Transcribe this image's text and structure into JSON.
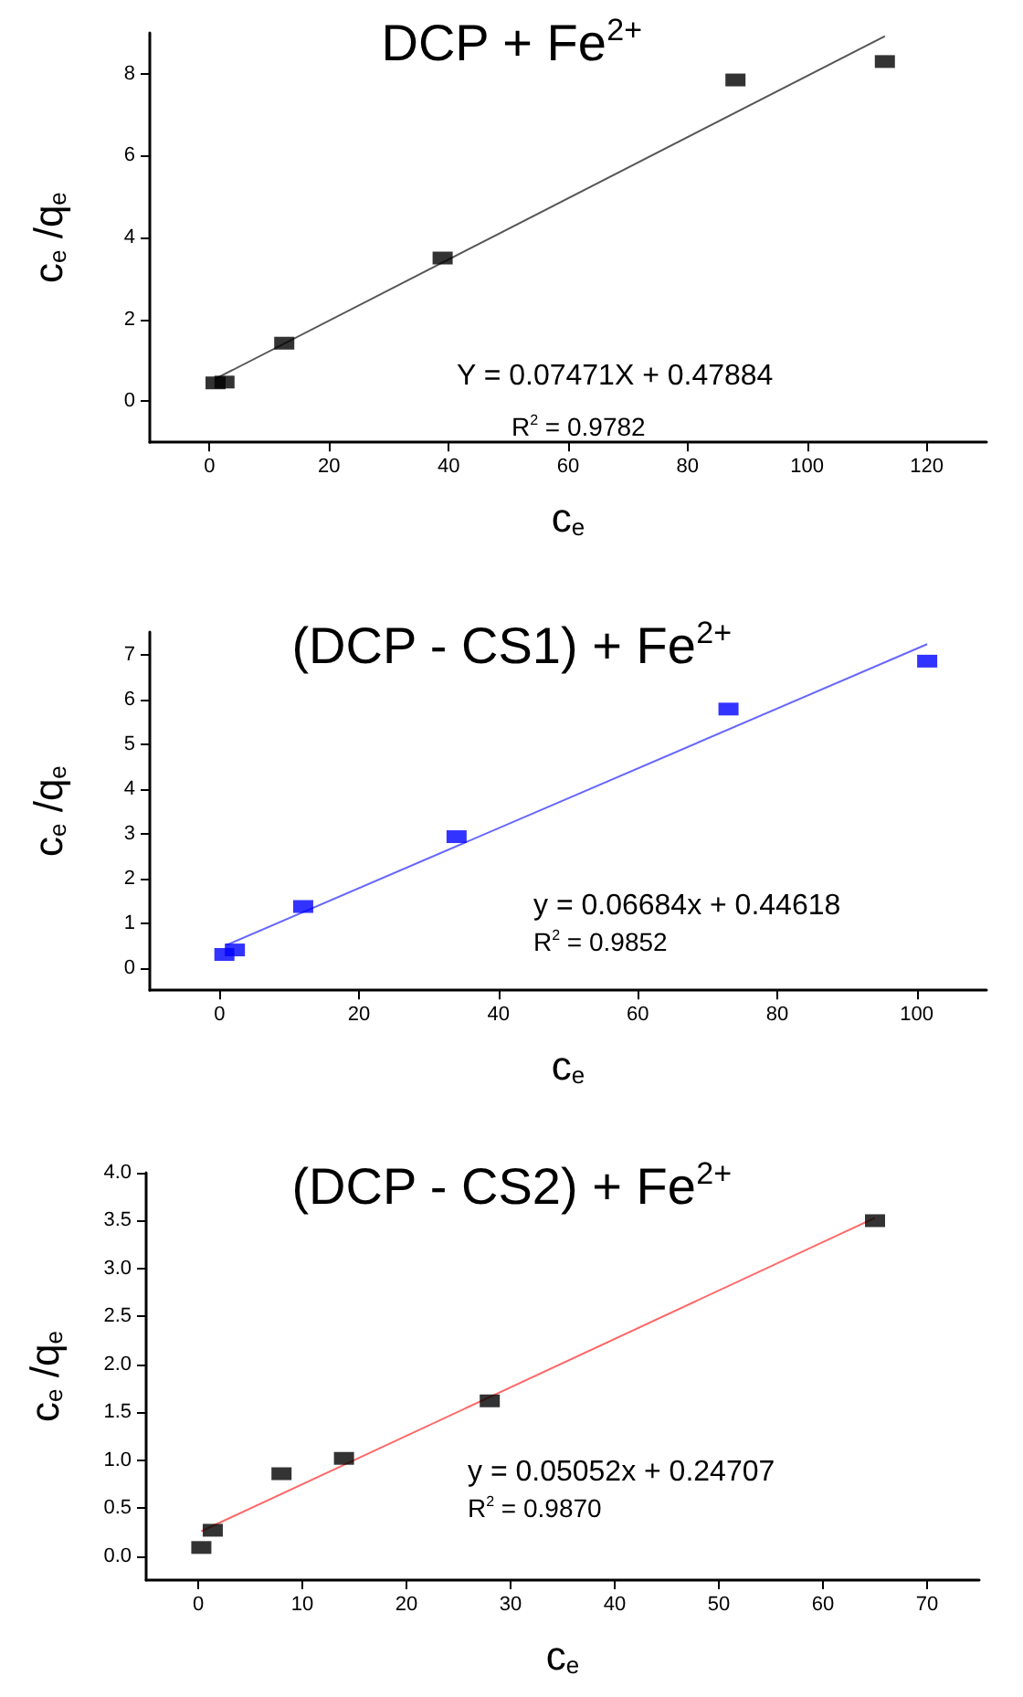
{
  "chart_data": [
    {
      "type": "scatter",
      "title": "DCP + Fe$^{2+}$",
      "xlabel": "c$_{e}$",
      "ylabel": "c$_{e}$ /q$_{e}$",
      "annotations": [
        "Y = 0.07471X + 0.47884",
        "R$^{2}$ = 0.9782"
      ],
      "xlim": [
        -10,
        130
      ],
      "xticks": [
        0,
        20,
        40,
        60,
        80,
        100,
        120
      ],
      "ylim": [
        -1,
        9
      ],
      "yticks": [
        0,
        2,
        4,
        6,
        8
      ],
      "grid": false,
      "marker": "square",
      "series": [
        {
          "color": "#000000",
          "x": [
            1,
            2.5,
            12.5,
            39,
            88,
            113
          ],
          "values": [
            0.45,
            0.47,
            1.42,
            3.5,
            7.85,
            8.3
          ]
        },
        {
          "type": "line",
          "color": "#555555",
          "line_style": "solid",
          "marker": "none",
          "x": [
            1,
            113
          ],
          "values": [
            0.55,
            8.92
          ]
        }
      ]
    },
    {
      "type": "scatter",
      "title": "(DCP - CS1) + Fe$^{2+}$",
      "xlabel": "c$_{e}$",
      "ylabel": "c$_{e}$ /q$_{e}$",
      "annotations": [
        "y = 0.06684x + 0.44618",
        "R$^{2}$ = 0.9852"
      ],
      "xlim": [
        -10,
        110
      ],
      "xticks": [
        0,
        20,
        40,
        60,
        80,
        100
      ],
      "ylim": [
        -0.5,
        7.5
      ],
      "yticks": [
        0,
        1,
        2,
        3,
        4,
        5,
        6,
        7
      ],
      "grid": false,
      "marker": "square",
      "series": [
        {
          "color": "#0000ff",
          "x": [
            0.7,
            2.2,
            12,
            34,
            73,
            101.5
          ],
          "values": [
            0.3,
            0.4,
            1.37,
            2.93,
            5.78,
            6.85
          ]
        },
        {
          "type": "line",
          "color": "#6666ff",
          "line_style": "solid",
          "marker": "none",
          "x": [
            1,
            101.5
          ],
          "values": [
            0.51,
            7.23
          ]
        }
      ]
    },
    {
      "type": "scatter",
      "title": "(DCP - CS2) + Fe$^{2+}$",
      "xlabel": "c$_{e}$",
      "ylabel": "c$_{e}$ /q$_{e}$",
      "annotations": [
        "y = 0.05052x + 0.24707",
        "R$^{2}$ = 0.9870"
      ],
      "xlim": [
        -5,
        75
      ],
      "xticks": [
        0,
        10,
        20,
        30,
        40,
        50,
        60,
        70
      ],
      "ylim": [
        -0.25,
        4.0
      ],
      "yticks": [
        {
          "value": 0,
          "label": "0.0"
        },
        0.5,
        {
          "value": 1,
          "label": "1.0"
        },
        1.5,
        {
          "value": 2,
          "label": "2.0"
        },
        2.5,
        {
          "value": 3,
          "label": "3.0"
        },
        3.5,
        {
          "value": 4,
          "label": "4.0"
        }
      ],
      "grid": false,
      "marker": "square",
      "series": [
        {
          "color": "#000000",
          "x": [
            0.3,
            1.4,
            8,
            14,
            28,
            65
          ],
          "values": [
            0.09,
            0.27,
            0.86,
            1.02,
            1.62,
            3.5
          ]
        },
        {
          "type": "line",
          "color": "#ff6666",
          "line_style": "solid",
          "marker": "none",
          "x": [
            0.3,
            65
          ],
          "values": [
            0.26,
            3.53
          ]
        }
      ]
    }
  ]
}
